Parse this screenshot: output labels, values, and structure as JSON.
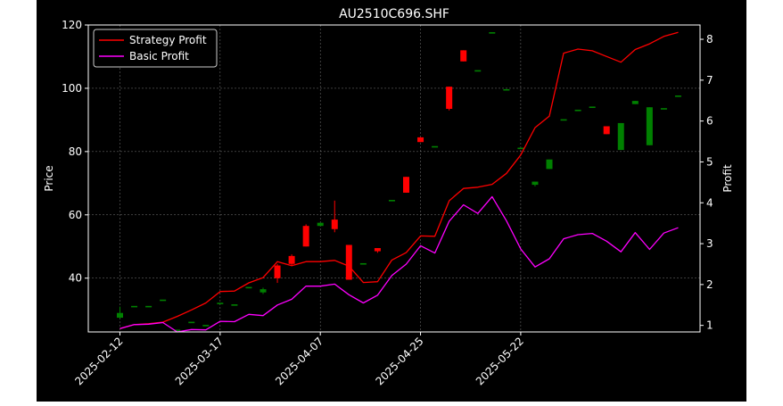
{
  "chart_data": {
    "type": "candlestick+line",
    "title": "AU2510C696.SHF",
    "xlabel": "",
    "ylabel_left": "Price",
    "ylabel_right": "Profit",
    "ylim_left": [
      23,
      120
    ],
    "ylim_right": [
      0.84,
      8.35
    ],
    "grid": true,
    "background": "#000000",
    "foreground": "#ffffff",
    "legend_position": "upper-left",
    "x_tick_labels": [
      {
        "label": "2025-02-12",
        "index": 0
      },
      {
        "label": "2025-03-17",
        "index": 7
      },
      {
        "label": "2025-04-07",
        "index": 14
      },
      {
        "label": "2025-04-25",
        "index": 21
      },
      {
        "label": "2025-05-22",
        "index": 28
      }
    ],
    "y_left_ticks": [
      40,
      60,
      80,
      100,
      120
    ],
    "y_right_ticks": [
      1,
      2,
      3,
      4,
      5,
      6,
      7,
      8
    ],
    "candles": [
      {
        "i": 0,
        "open": 27.5,
        "close": 29.0,
        "high": 31.0,
        "low": 27.3
      },
      {
        "i": 1,
        "open": 31.0,
        "close": 31.0,
        "high": 31.0,
        "low": 31.0
      },
      {
        "i": 2,
        "open": 31.0,
        "close": 31.0,
        "high": 31.0,
        "low": 31.0
      },
      {
        "i": 3,
        "open": 33.0,
        "close": 33.0,
        "high": 33.0,
        "low": 33.0
      },
      {
        "i": 4,
        "open": 23.5,
        "close": 23.5,
        "high": 23.5,
        "low": 23.5
      },
      {
        "i": 5,
        "open": 26.0,
        "close": 26.0,
        "high": 26.0,
        "low": 26.0
      },
      {
        "i": 6,
        "open": 25.0,
        "close": 25.0,
        "high": 25.0,
        "low": 25.0
      },
      {
        "i": 7,
        "open": 32.0,
        "close": 32.0,
        "high": 32.0,
        "low": 32.0
      },
      {
        "i": 8,
        "open": 31.5,
        "close": 31.5,
        "high": 31.5,
        "low": 31.5
      },
      {
        "i": 9,
        "open": 37.0,
        "close": 37.0,
        "high": 37.0,
        "low": 37.0
      },
      {
        "i": 10,
        "open": 35.5,
        "close": 36.5,
        "high": 37.0,
        "low": 35.0
      },
      {
        "i": 11,
        "open": 44.0,
        "close": 40.0,
        "high": 44.5,
        "low": 38.5
      },
      {
        "i": 12,
        "open": 47.0,
        "close": 44.5,
        "high": 47.5,
        "low": 44.0
      },
      {
        "i": 13,
        "open": 56.5,
        "close": 50.0,
        "high": 57.0,
        "low": 50.0
      },
      {
        "i": 14,
        "open": 56.5,
        "close": 57.5,
        "high": 57.5,
        "low": 56.5
      },
      {
        "i": 15,
        "open": 58.5,
        "close": 55.5,
        "high": 64.5,
        "low": 54.5
      },
      {
        "i": 16,
        "open": 50.5,
        "close": 39.5,
        "high": 50.5,
        "low": 39.5
      },
      {
        "i": 17,
        "open": 44.5,
        "close": 44.5,
        "high": 44.5,
        "low": 44.5
      },
      {
        "i": 18,
        "open": 49.5,
        "close": 48.5,
        "high": 49.5,
        "low": 48.0
      },
      {
        "i": 19,
        "open": 64.5,
        "close": 64.5,
        "high": 64.5,
        "low": 64.5
      },
      {
        "i": 20,
        "open": 72.0,
        "close": 67.0,
        "high": 72.0,
        "low": 67.0
      },
      {
        "i": 21,
        "open": 84.5,
        "close": 83.0,
        "high": 84.5,
        "low": 83.0
      },
      {
        "i": 22,
        "open": 81.5,
        "close": 81.5,
        "high": 81.5,
        "low": 81.5
      },
      {
        "i": 23,
        "open": 100.5,
        "close": 93.5,
        "high": 100.5,
        "low": 93.0
      },
      {
        "i": 24,
        "open": 112.0,
        "close": 108.5,
        "high": 112.0,
        "low": 108.5
      },
      {
        "i": 25,
        "open": 105.5,
        "close": 105.5,
        "high": 105.5,
        "low": 105.5
      },
      {
        "i": 26,
        "open": 117.5,
        "close": 117.5,
        "high": 117.5,
        "low": 117.5
      },
      {
        "i": 27,
        "open": 99.5,
        "close": 99.5,
        "high": 99.5,
        "low": 99.5
      },
      {
        "i": 28,
        "open": 81.0,
        "close": 81.0,
        "high": 81.0,
        "low": 81.0
      },
      {
        "i": 29,
        "open": 69.5,
        "close": 70.5,
        "high": 70.5,
        "low": 69.0
      },
      {
        "i": 30,
        "open": 74.5,
        "close": 77.5,
        "high": 77.5,
        "low": 74.5
      },
      {
        "i": 31,
        "open": 90.0,
        "close": 90.0,
        "high": 90.0,
        "low": 90.0
      },
      {
        "i": 32,
        "open": 93.0,
        "close": 93.0,
        "high": 93.0,
        "low": 93.0
      },
      {
        "i": 33,
        "open": 94.0,
        "close": 94.0,
        "high": 94.0,
        "low": 94.0
      },
      {
        "i": 34,
        "open": 88.0,
        "close": 85.5,
        "high": 88.0,
        "low": 85.5
      },
      {
        "i": 35,
        "open": 80.5,
        "close": 89.0,
        "high": 89.0,
        "low": 80.5
      },
      {
        "i": 36,
        "open": 95.0,
        "close": 96.0,
        "high": 96.0,
        "low": 95.0
      },
      {
        "i": 37,
        "open": 82.0,
        "close": 94.0,
        "high": 94.0,
        "low": 82.0
      },
      {
        "i": 38,
        "open": 93.5,
        "close": 93.5,
        "high": 93.5,
        "low": 93.5
      },
      {
        "i": 39,
        "open": 97.5,
        "close": 97.5,
        "high": 97.5,
        "low": 97.5
      }
    ],
    "series": [
      {
        "name": "Strategy Profit",
        "color": "#ff0000",
        "axis": "right",
        "values": [
          0.92,
          1.02,
          1.04,
          1.08,
          1.22,
          1.38,
          1.55,
          1.83,
          1.84,
          2.04,
          2.17,
          2.56,
          2.46,
          2.56,
          2.56,
          2.59,
          2.45,
          2.05,
          2.07,
          2.6,
          2.78,
          3.19,
          3.18,
          4.05,
          4.35,
          4.38,
          4.45,
          4.72,
          5.17,
          5.84,
          6.12,
          7.66,
          7.76,
          7.72,
          7.58,
          7.44,
          7.75,
          7.89,
          8.07,
          8.17
        ]
      },
      {
        "name": "Basic Profit",
        "color": "#ff00ff",
        "axis": "right",
        "values": [
          0.92,
          1.02,
          1.03,
          1.07,
          0.84,
          0.9,
          0.89,
          1.1,
          1.09,
          1.27,
          1.24,
          1.5,
          1.64,
          1.96,
          1.96,
          2.01,
          1.75,
          1.55,
          1.74,
          2.22,
          2.5,
          2.95,
          2.77,
          3.55,
          3.95,
          3.74,
          4.15,
          3.56,
          2.87,
          2.43,
          2.63,
          3.12,
          3.22,
          3.25,
          3.06,
          2.8,
          3.27,
          2.86,
          3.26,
          3.39
        ]
      }
    ],
    "candle_colors": {
      "up": "#008000",
      "down": "#ff0000"
    },
    "legend": {
      "entries": [
        "Strategy Profit",
        "Basic Profit"
      ]
    }
  }
}
